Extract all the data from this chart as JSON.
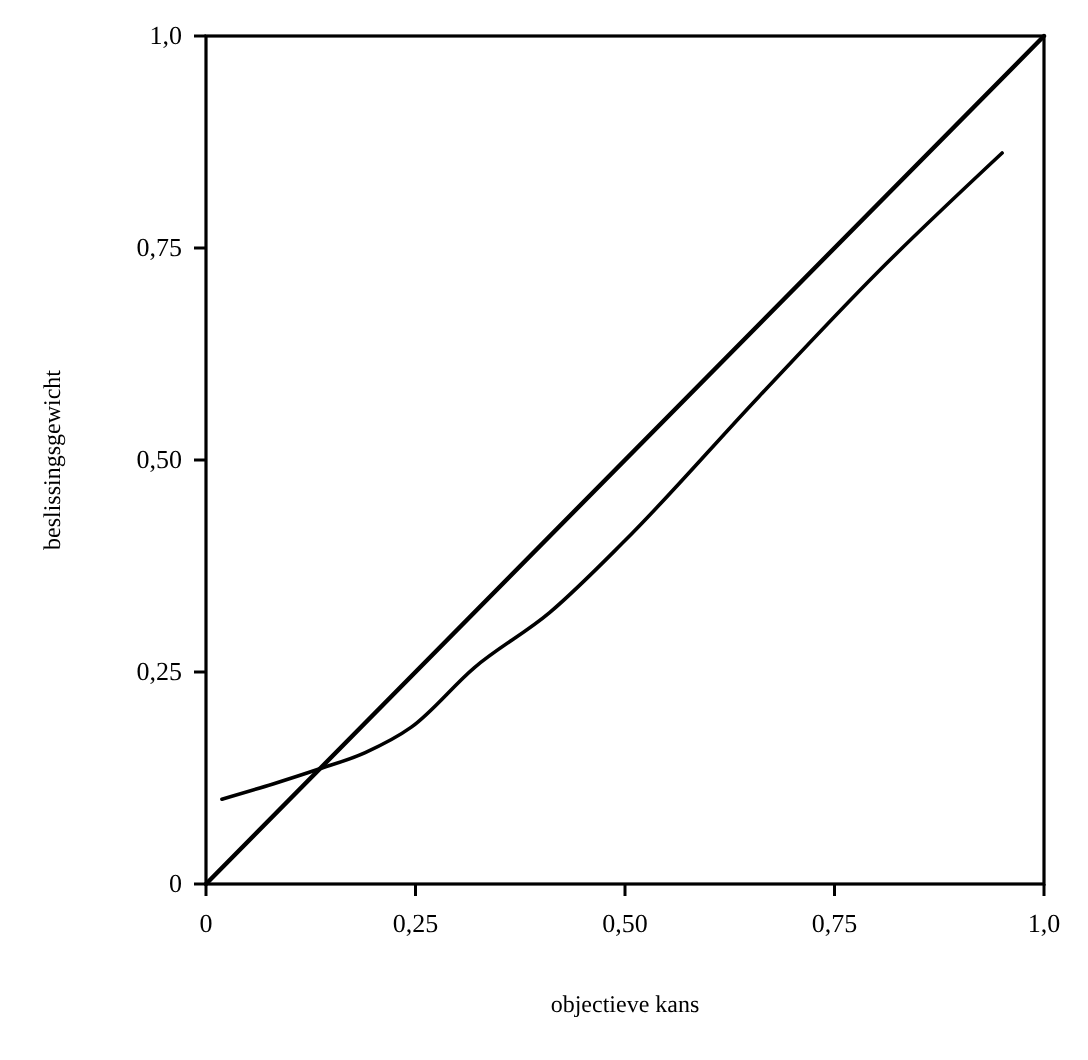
{
  "chart_data": {
    "type": "line",
    "xlabel": "objectieve kans",
    "ylabel": "beslissingsgewicht",
    "xlim": [
      0,
      1
    ],
    "ylim": [
      0,
      1
    ],
    "xticks": [
      {
        "value": 0,
        "label": "0"
      },
      {
        "value": 0.25,
        "label": "0,25"
      },
      {
        "value": 0.5,
        "label": "0,50"
      },
      {
        "value": 0.75,
        "label": "0,75"
      },
      {
        "value": 1,
        "label": "1,0"
      }
    ],
    "yticks": [
      {
        "value": 0,
        "label": "0"
      },
      {
        "value": 0.25,
        "label": "0,25"
      },
      {
        "value": 0.5,
        "label": "0,50"
      },
      {
        "value": 0.75,
        "label": "0,75"
      },
      {
        "value": 1,
        "label": "1,0"
      }
    ],
    "grid": false,
    "marker": "none",
    "line_style": "solid",
    "series": [
      {
        "color": "#000000",
        "x": [
          0,
          1
        ],
        "values": [
          0,
          1
        ]
      },
      {
        "color": "#000000",
        "x": [
          0.019,
          0.08,
          0.133,
          0.19,
          0.245,
          0.32,
          0.41,
          0.5,
          0.66,
          0.8,
          0.95
        ],
        "values": [
          0.1,
          0.118,
          0.135,
          0.155,
          0.185,
          0.255,
          0.32,
          0.405,
          0.575,
          0.72,
          0.862
        ]
      }
    ]
  }
}
